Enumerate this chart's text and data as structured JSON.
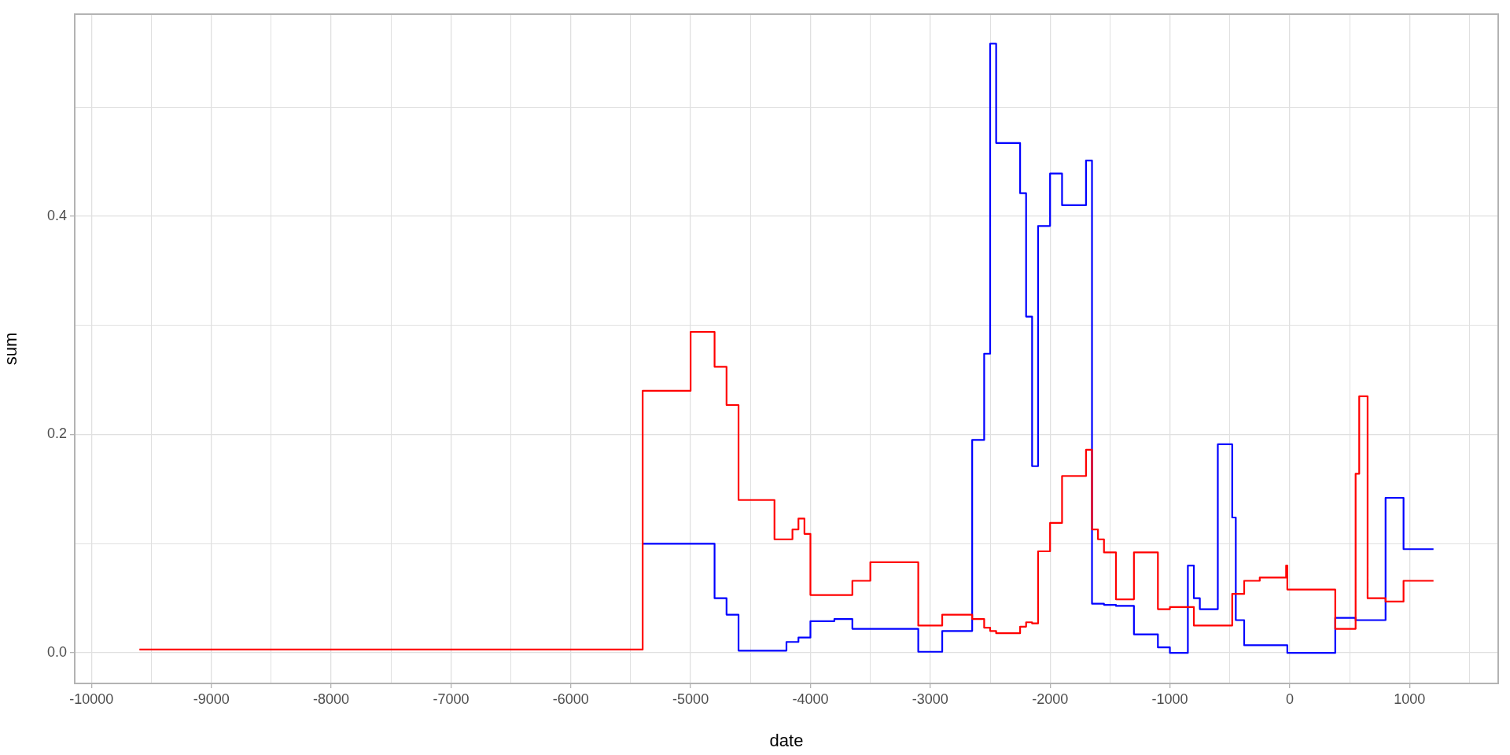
{
  "chart_data": {
    "type": "step",
    "xlabel": "date",
    "ylabel": "sum",
    "grid": true,
    "legend": false,
    "marker": "none",
    "line_style": "solid",
    "xlim": [
      -10140,
      1740
    ],
    "ylim": [
      -0.028,
      0.585
    ],
    "xticks": [
      -10000,
      {
        "value": -9500,
        "label": null
      },
      -9000,
      {
        "value": -8500,
        "label": null
      },
      -8000,
      {
        "value": -7500,
        "label": null
      },
      -7000,
      {
        "value": -6500,
        "label": null
      },
      -6000,
      {
        "value": -5500,
        "label": null
      },
      -5000,
      {
        "value": -4500,
        "label": null
      },
      -4000,
      {
        "value": -3500,
        "label": null
      },
      -3000,
      {
        "value": -2500,
        "label": null
      },
      -2000,
      {
        "value": -1500,
        "label": null
      },
      -1000,
      {
        "value": -500,
        "label": null
      },
      0,
      {
        "value": 500,
        "label": null
      },
      1000,
      {
        "value": 1500,
        "label": null
      }
    ],
    "yticks": [
      {
        "value": 0,
        "label": "0.0"
      },
      {
        "value": 0.1,
        "label": null
      },
      0.2,
      {
        "value": 0.3,
        "label": null
      },
      0.4,
      {
        "value": 0.5,
        "label": null
      }
    ],
    "series": [
      {
        "color": "#ff0000",
        "x": [
          -9600,
          -5400,
          -5000,
          -4800,
          -4700,
          -4600,
          -4300,
          -4150,
          -4100,
          -4050,
          -4000,
          -3650,
          -3500,
          -3100,
          -2900,
          -2650,
          -2550,
          -2500,
          -2450,
          -2250,
          -2200,
          -2150,
          -2100,
          -2000,
          -1900,
          -1700,
          -1650,
          -1600,
          -1550,
          -1450,
          -1300,
          -1100,
          -1000,
          -800,
          -480,
          -380,
          -250,
          -30,
          -20,
          380,
          550,
          580,
          650,
          800,
          950,
          1200
        ],
        "values": [
          0.003,
          0.24,
          0.294,
          0.262,
          0.227,
          0.14,
          0.104,
          0.113,
          0.123,
          0.109,
          0.053,
          0.066,
          0.083,
          0.025,
          0.035,
          0.031,
          0.023,
          0.02,
          0.018,
          0.024,
          0.028,
          0.027,
          0.093,
          0.119,
          0.162,
          0.186,
          0.113,
          0.104,
          0.092,
          0.049,
          0.092,
          0.04,
          0.042,
          0.025,
          0.054,
          0.066,
          0.069,
          0.08,
          0.058,
          0.022,
          0.164,
          0.235,
          0.05,
          0.047,
          0.066,
          0.066
        ]
      },
      {
        "color": "#0000ff",
        "x": [
          -5400,
          -4800,
          -4700,
          -4600,
          -4200,
          -4100,
          -4000,
          -3800,
          -3650,
          -3100,
          -2900,
          -2650,
          -2550,
          -2500,
          -2450,
          -2250,
          -2200,
          -2150,
          -2100,
          -2000,
          -1900,
          -1700,
          -1650,
          -1550,
          -1450,
          -1300,
          -1100,
          -1000,
          -850,
          -800,
          -750,
          -600,
          -480,
          -450,
          -380,
          -20,
          380,
          550,
          800,
          950,
          1200
        ],
        "values": [
          0.1,
          0.05,
          0.035,
          0.002,
          0.01,
          0.014,
          0.029,
          0.031,
          0.022,
          0.001,
          0.02,
          0.195,
          0.274,
          0.558,
          0.467,
          0.421,
          0.308,
          0.171,
          0.391,
          0.439,
          0.41,
          0.451,
          0.045,
          0.044,
          0.043,
          0.017,
          0.005,
          0.0,
          0.08,
          0.05,
          0.04,
          0.191,
          0.124,
          0.03,
          0.007,
          0.0,
          0.032,
          0.03,
          0.142,
          0.095,
          0.095
        ]
      }
    ]
  }
}
